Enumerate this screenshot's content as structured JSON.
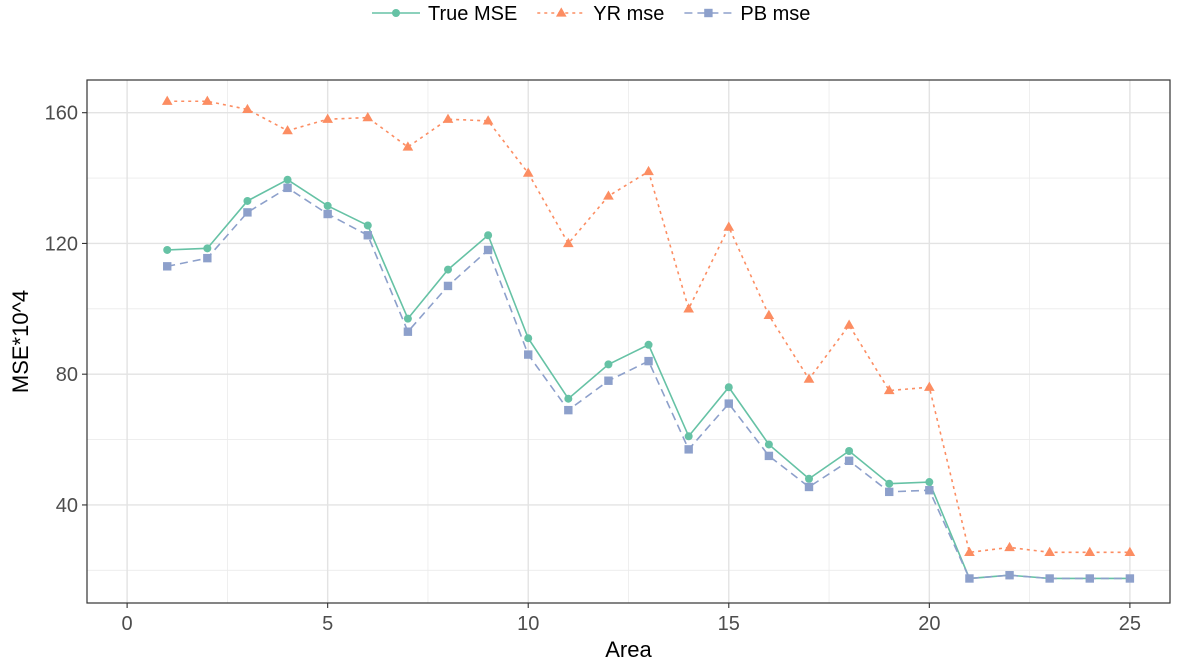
{
  "chart_data": {
    "type": "line",
    "title": "",
    "xlabel": "Area",
    "ylabel": "MSE*10^4",
    "xlim": [
      0,
      25
    ],
    "ylim": [
      10,
      170
    ],
    "x_ticks": [
      0,
      5,
      10,
      15,
      20,
      25
    ],
    "y_ticks": [
      40,
      80,
      120,
      160
    ],
    "grid": true,
    "legend_position": "top",
    "x": [
      1,
      2,
      3,
      4,
      5,
      6,
      7,
      8,
      9,
      10,
      11,
      12,
      13,
      14,
      15,
      16,
      17,
      18,
      19,
      20,
      21,
      22,
      23,
      24,
      25
    ],
    "series": [
      {
        "name": "True MSE",
        "color": "#66c2a5",
        "line_style": "solid",
        "marker": "circle",
        "values": [
          118.0,
          118.5,
          133.0,
          139.5,
          131.5,
          125.5,
          97.0,
          112.0,
          122.5,
          91.0,
          72.5,
          83.0,
          89.0,
          61.0,
          76.0,
          58.5,
          48.0,
          56.5,
          46.5,
          47.0,
          17.5,
          18.5,
          17.5,
          17.5,
          17.5
        ]
      },
      {
        "name": "YR mse",
        "color": "#fc8d62",
        "line_style": "dotted",
        "marker": "triangle",
        "values": [
          163.5,
          163.5,
          161.0,
          154.5,
          158.0,
          158.5,
          149.5,
          158.0,
          157.5,
          141.5,
          120.0,
          134.5,
          142.0,
          100.0,
          125.0,
          98.0,
          78.5,
          95.0,
          75.0,
          76.0,
          25.5,
          27.0,
          25.5,
          25.5,
          25.5
        ]
      },
      {
        "name": "PB mse",
        "color": "#8da0cb",
        "line_style": "dashed",
        "marker": "square",
        "values": [
          113.0,
          115.5,
          129.5,
          137.0,
          129.0,
          122.5,
          93.0,
          107.0,
          118.0,
          86.0,
          69.0,
          78.0,
          84.0,
          57.0,
          71.0,
          55.0,
          45.5,
          53.5,
          44.0,
          44.5,
          17.5,
          18.5,
          17.5,
          17.5,
          17.5
        ]
      }
    ]
  }
}
